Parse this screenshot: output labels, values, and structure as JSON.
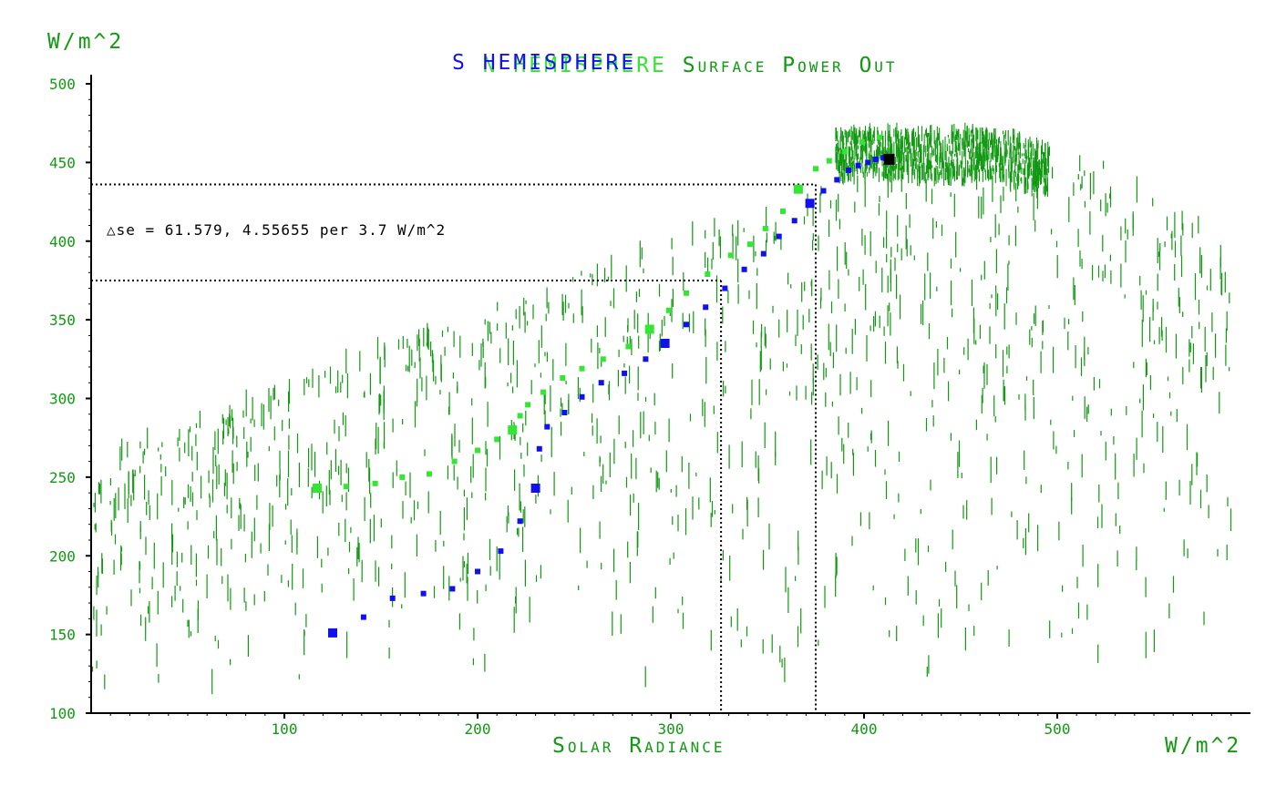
{
  "chart_data": {
    "type": "scatter",
    "title_parts": [
      {
        "text": "N HEMISPHERE",
        "color": "#33e633"
      },
      {
        "text": "Surface Power Out",
        "color": "#119911"
      }
    ],
    "subtitle": {
      "text": "S HEMISPHERE",
      "color": "#1111ee"
    },
    "ylabel": "W/m^2",
    "xlabel": "Solar Radiance",
    "xunit": "W/m^2",
    "xlim": [
      0,
      600
    ],
    "ylim": [
      100,
      500
    ],
    "xticks": [
      "100",
      "200",
      "300",
      "400",
      "500"
    ],
    "yticks": [
      "100",
      "150",
      "200",
      "250",
      "300",
      "350",
      "400",
      "450",
      "500"
    ],
    "annotation": "△se = 61.579, 4.55655 per 3.7 W/m^2",
    "reference_lines": [
      {
        "x": 326,
        "y": 375
      },
      {
        "x": 375,
        "y": 436
      }
    ],
    "grid": false,
    "legend": "top-center",
    "colors": {
      "background": "#ffffff",
      "axis": "#000000",
      "tick_label": "#119911",
      "scatter": "#119911",
      "n_hemisphere": "#33e633",
      "s_hemisphere": "#1111ee",
      "endpoint": "#000000"
    },
    "series": [
      {
        "name": "N HEMISPHERE",
        "color": "#33e633",
        "points": [
          [
            117,
            243
          ],
          [
            132,
            244
          ],
          [
            147,
            246
          ],
          [
            161,
            250
          ],
          [
            175,
            252
          ],
          [
            188,
            260
          ],
          [
            200,
            267
          ],
          [
            210,
            274
          ],
          [
            218,
            280
          ],
          [
            222,
            289
          ],
          [
            226,
            296
          ],
          [
            234,
            304
          ],
          [
            244,
            313
          ],
          [
            254,
            319
          ],
          [
            265,
            325
          ],
          [
            278,
            333
          ],
          [
            289,
            344
          ],
          [
            299,
            356
          ],
          [
            308,
            367
          ],
          [
            319,
            379
          ],
          [
            331,
            391
          ],
          [
            341,
            398
          ],
          [
            349,
            408
          ],
          [
            358,
            419
          ],
          [
            366,
            433
          ],
          [
            375,
            446
          ],
          [
            382,
            451
          ],
          [
            390,
            457
          ],
          [
            399,
            463
          ],
          [
            408,
            466
          ],
          [
            413,
            453
          ]
        ]
      },
      {
        "name": "S HEMISPHERE",
        "color": "#1111ee",
        "points": [
          [
            125,
            151
          ],
          [
            141,
            161
          ],
          [
            156,
            173
          ],
          [
            172,
            176
          ],
          [
            187,
            179
          ],
          [
            200,
            190
          ],
          [
            212,
            203
          ],
          [
            222,
            222
          ],
          [
            230,
            243
          ],
          [
            232,
            268
          ],
          [
            236,
            282
          ],
          [
            245,
            291
          ],
          [
            254,
            301
          ],
          [
            264,
            310
          ],
          [
            276,
            316
          ],
          [
            287,
            325
          ],
          [
            297,
            335
          ],
          [
            308,
            347
          ],
          [
            318,
            358
          ],
          [
            328,
            370
          ],
          [
            338,
            382
          ],
          [
            348,
            392
          ],
          [
            356,
            403
          ],
          [
            364,
            413
          ],
          [
            372,
            424
          ],
          [
            379,
            432
          ],
          [
            386,
            439
          ],
          [
            392,
            445
          ],
          [
            397,
            448
          ],
          [
            402,
            450
          ],
          [
            406,
            452
          ],
          [
            410,
            453
          ],
          [
            413,
            452
          ]
        ]
      }
    ]
  }
}
